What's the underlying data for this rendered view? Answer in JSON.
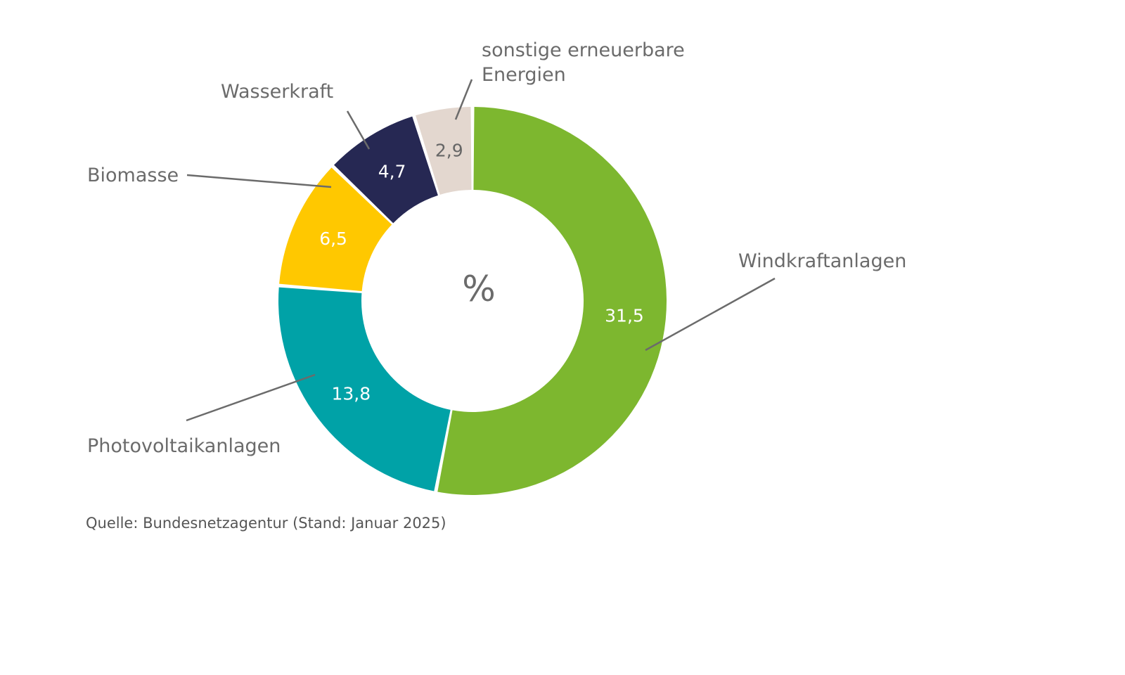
{
  "chart_data": {
    "type": "pie",
    "subtype": "donut",
    "center_label": "%",
    "categories": [
      "Windkraftanlagen",
      "Photovoltaikanlagen",
      "Biomasse",
      "Wasserkraft",
      "sonstige erneuerbare Energien"
    ],
    "category_label_lines": [
      [
        "Windkraftanlagen"
      ],
      [
        "Photovoltaikanlagen"
      ],
      [
        "Biomasse"
      ],
      [
        "Wasserkraft"
      ],
      [
        "sonstige erneuerbare",
        "Energien"
      ]
    ],
    "values": [
      31.5,
      13.8,
      6.5,
      4.7,
      2.9
    ],
    "value_labels": [
      "31,5",
      "13,8",
      "6,5",
      "4,7",
      "2,9"
    ],
    "colors": [
      "#7db72f",
      "#00a2a7",
      "#ffc800",
      "#262853",
      "#e3d7cf"
    ],
    "value_label_colors": [
      "#ffffff",
      "#ffffff",
      "#ffffff",
      "#ffffff",
      "#666666"
    ],
    "legend": "none"
  },
  "source": "Quelle: Bundesnetzagentur (Stand: Januar 2025)"
}
